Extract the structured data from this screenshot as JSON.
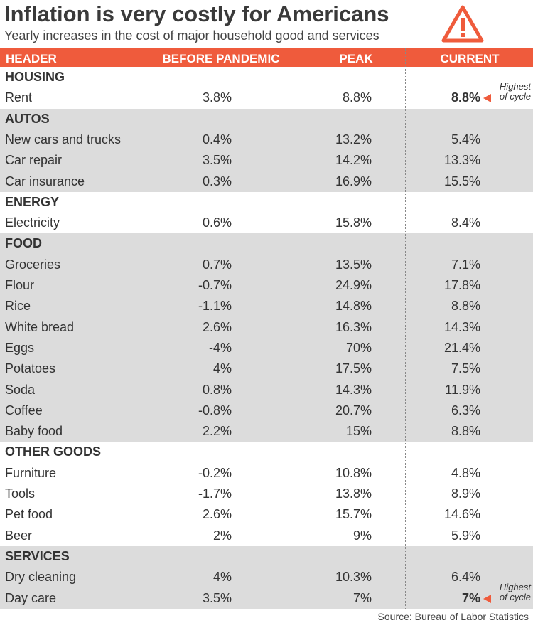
{
  "header": {
    "title": "Inflation is very costly for Americans",
    "subtitle": "Yearly increases in the cost of major household good and services"
  },
  "table": {
    "columns": [
      "HEADER",
      "BEFORE PANDEMIC",
      "PEAK",
      "CURRENT"
    ],
    "groups": [
      {
        "name": "HOUSING",
        "rows": [
          {
            "label": "Rent",
            "before": "3.8%",
            "peak": "8.8%",
            "current": "8.8%",
            "note": [
              "Highest",
              "of cycle"
            ]
          }
        ]
      },
      {
        "name": "AUTOS",
        "rows": [
          {
            "label": "New cars and trucks",
            "before": "0.4%",
            "peak": "13.2%",
            "current": "5.4%"
          },
          {
            "label": "Car repair",
            "before": "3.5%",
            "peak": "14.2%",
            "current": "13.3%"
          },
          {
            "label": "Car insurance",
            "before": "0.3%",
            "peak": "16.9%",
            "current": "15.5%"
          }
        ]
      },
      {
        "name": "ENERGY",
        "rows": [
          {
            "label": "Electricity",
            "before": "0.6%",
            "peak": "15.8%",
            "current": "8.4%"
          }
        ]
      },
      {
        "name": "FOOD",
        "rows": [
          {
            "label": "Groceries",
            "before": "0.7%",
            "peak": "13.5%",
            "current": "7.1%"
          },
          {
            "label": "Flour",
            "before": "-0.7%",
            "peak": "24.9%",
            "current": "17.8%"
          },
          {
            "label": "Rice",
            "before": "-1.1%",
            "peak": "14.8%",
            "current": "8.8%"
          },
          {
            "label": "White bread",
            "before": "2.6%",
            "peak": "16.3%",
            "current": "14.3%"
          },
          {
            "label": "Eggs",
            "before": "-4%",
            "peak": "70%",
            "current": "21.4%"
          },
          {
            "label": "Potatoes",
            "before": "4%",
            "peak": "17.5%",
            "current": "7.5%"
          },
          {
            "label": "Soda",
            "before": "0.8%",
            "peak": "14.3%",
            "current": "11.9%"
          },
          {
            "label": "Coffee",
            "before": "-0.8%",
            "peak": "20.7%",
            "current": "6.3%"
          },
          {
            "label": "Baby food",
            "before": "2.2%",
            "peak": "15%",
            "current": "8.8%"
          }
        ]
      },
      {
        "name": "OTHER GOODS",
        "rows": [
          {
            "label": "Furniture",
            "before": "-0.2%",
            "peak": "10.8%",
            "current": "4.8%"
          },
          {
            "label": "Tools",
            "before": "-1.7%",
            "peak": "13.8%",
            "current": "8.9%"
          },
          {
            "label": "Pet food",
            "before": "2.6%",
            "peak": "15.7%",
            "current": "14.6%"
          },
          {
            "label": "Beer",
            "before": "2%",
            "peak": "9%",
            "current": "5.9%"
          }
        ]
      },
      {
        "name": "SERVICES",
        "rows": [
          {
            "label": "Dry cleaning",
            "before": "4%",
            "peak": "10.3%",
            "current": "6.4%"
          },
          {
            "label": "Day care",
            "before": "3.5%",
            "peak": "7%",
            "current": "7%",
            "note": [
              "Highest",
              "of cycle"
            ]
          }
        ]
      }
    ]
  },
  "footer": {
    "source": "Source: Bureau of Labor Statistics"
  }
}
